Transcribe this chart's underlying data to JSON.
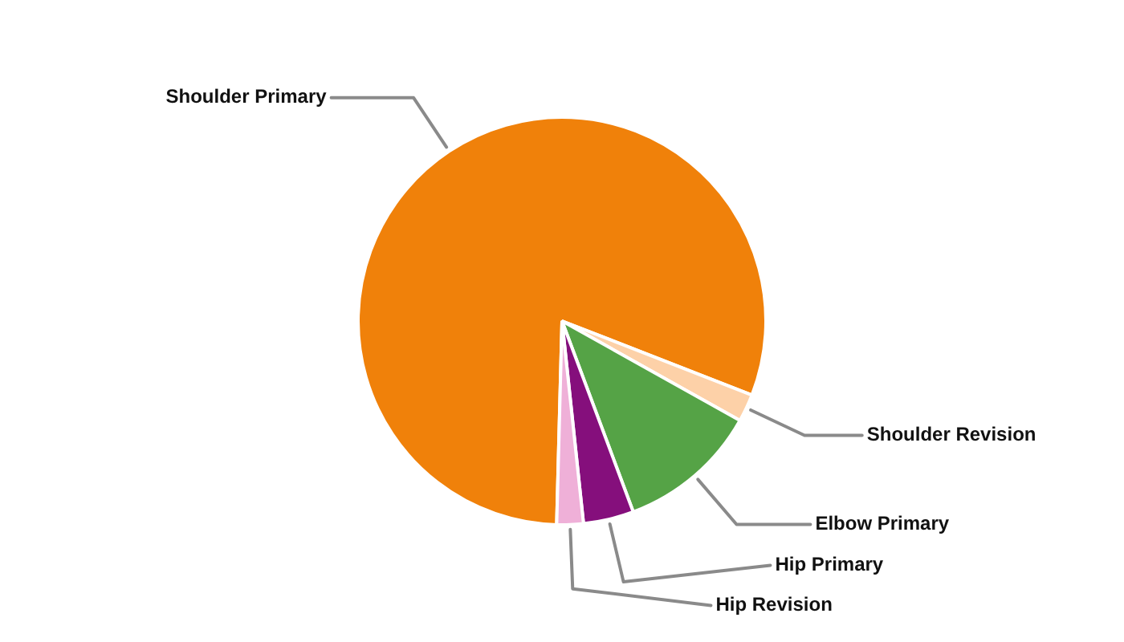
{
  "chart_data": {
    "type": "pie",
    "categories": [
      "Shoulder Primary",
      "Shoulder Revision",
      "Elbow Primary",
      "Hip Primary",
      "Hip Revision"
    ],
    "values": [
      80.5,
      2.2,
      11.2,
      4.0,
      2.1
    ],
    "colors": [
      "#f0810a",
      "#fdd1a8",
      "#55a346",
      "#850f7c",
      "#efb0d8"
    ],
    "legend": false
  }
}
